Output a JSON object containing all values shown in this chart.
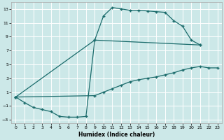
{
  "xlabel": "Humidex (Indice chaleur)",
  "background_color": "#cce8e8",
  "grid_color": "#ffffff",
  "line_color": "#1a6b6b",
  "xlim": [
    -0.5,
    23.5
  ],
  "ylim": [
    -3.5,
    14
  ],
  "xticks": [
    0,
    1,
    2,
    3,
    4,
    5,
    6,
    7,
    8,
    9,
    10,
    11,
    12,
    13,
    14,
    15,
    16,
    17,
    18,
    19,
    20,
    21,
    22,
    23
  ],
  "yticks": [
    -3,
    -1,
    1,
    3,
    5,
    7,
    9,
    11,
    13
  ],
  "curve_top_x": [
    0,
    9,
    10,
    11,
    12,
    13,
    14,
    15,
    16,
    17,
    18,
    19,
    20,
    21
  ],
  "curve_top_y": [
    0.3,
    8.5,
    12.0,
    13.2,
    13.0,
    12.8,
    12.8,
    12.7,
    12.6,
    12.5,
    11.3,
    10.5,
    8.5,
    7.8
  ],
  "curve_bottom_x": [
    0,
    1,
    2,
    3,
    4,
    5,
    6,
    7,
    8,
    9,
    21
  ],
  "curve_bottom_y": [
    0.3,
    -0.5,
    -1.2,
    -1.5,
    -1.8,
    -2.5,
    -2.6,
    -2.6,
    -2.5,
    8.5,
    7.8
  ],
  "curve_diag_x": [
    0,
    9,
    10,
    11,
    12,
    13,
    14,
    15,
    16,
    17,
    18,
    19,
    20,
    21,
    22,
    23
  ],
  "curve_diag_y": [
    0.3,
    0.5,
    1.0,
    1.5,
    2.0,
    2.5,
    2.8,
    3.0,
    3.2,
    3.5,
    3.8,
    4.2,
    4.5,
    4.7,
    4.5,
    4.5
  ]
}
